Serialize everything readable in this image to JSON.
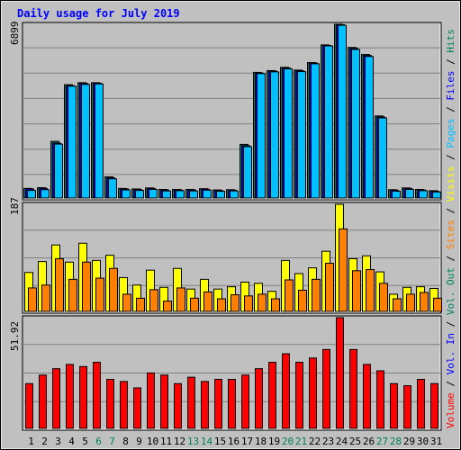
{
  "title": "Daily usage for July 2019",
  "right_legend": [
    {
      "text": "Hits",
      "color": "#00805c"
    },
    {
      "text": "Files",
      "color": "#0000ff"
    },
    {
      "text": "Pages",
      "color": "#00c0ff"
    },
    {
      "text": "Visits",
      "color": "#ffff00"
    },
    {
      "text": "Sites",
      "color": "#ff8000"
    },
    {
      "text": "Vol. Out",
      "color": "#00805c"
    },
    {
      "text": "Vol. In",
      "color": "#0000ff"
    },
    {
      "text": "Volume",
      "color": "#ff0000"
    }
  ],
  "chart_data": [
    {
      "type": "bar",
      "panel": "hits-files-pages",
      "ymax_label": "6899",
      "ylim": [
        0,
        6899
      ],
      "categories": [
        "1",
        "2",
        "3",
        "4",
        "5",
        "6",
        "7",
        "8",
        "9",
        "10",
        "11",
        "12",
        "13",
        "14",
        "15",
        "16",
        "17",
        "18",
        "19",
        "20",
        "21",
        "22",
        "23",
        "24",
        "25",
        "26",
        "27",
        "28",
        "29",
        "30",
        "31"
      ],
      "series": [
        {
          "name": "Hits",
          "color": "#00805c",
          "values": [
            380,
            410,
            2250,
            4500,
            4580,
            4580,
            840,
            380,
            360,
            400,
            340,
            340,
            340,
            370,
            320,
            330,
            2130,
            4990,
            5060,
            5190,
            5080,
            5380,
            6080,
            6899,
            5980,
            5700,
            3260,
            330,
            400,
            340,
            290
          ]
        },
        {
          "name": "Files",
          "color": "#0000ff",
          "values": [
            360,
            380,
            2180,
            4460,
            4550,
            4560,
            800,
            360,
            340,
            380,
            320,
            320,
            320,
            350,
            300,
            310,
            2080,
            4960,
            5040,
            5160,
            5050,
            5360,
            6060,
            6880,
            5940,
            5660,
            3220,
            310,
            380,
            320,
            270
          ]
        },
        {
          "name": "Pages",
          "color": "#00c0ff",
          "values": [
            300,
            330,
            2140,
            4440,
            4510,
            4530,
            760,
            320,
            300,
            340,
            280,
            290,
            280,
            310,
            270,
            280,
            2040,
            4940,
            5010,
            5130,
            5020,
            5330,
            6040,
            6860,
            5900,
            5620,
            3180,
            270,
            340,
            290,
            240
          ]
        }
      ]
    },
    {
      "type": "bar",
      "panel": "visits-sites",
      "ymax_label": "187",
      "ylim": [
        0,
        187
      ],
      "categories": [
        "1",
        "2",
        "3",
        "4",
        "5",
        "6",
        "7",
        "8",
        "9",
        "10",
        "11",
        "12",
        "13",
        "14",
        "15",
        "16",
        "17",
        "18",
        "19",
        "20",
        "21",
        "22",
        "23",
        "24",
        "25",
        "26",
        "27",
        "28",
        "29",
        "30",
        "31"
      ],
      "series": [
        {
          "name": "Visits",
          "color": "#ffff00",
          "values": [
            68,
            87,
            116,
            86,
            119,
            89,
            98,
            59,
            46,
            72,
            42,
            75,
            39,
            56,
            39,
            43,
            51,
            49,
            35,
            89,
            66,
            76,
            105,
            187,
            92,
            97,
            69,
            30,
            42,
            43,
            40
          ]
        },
        {
          "name": "Sites",
          "color": "#ff8000",
          "values": [
            41,
            46,
            92,
            56,
            86,
            58,
            75,
            30,
            23,
            38,
            18,
            41,
            23,
            34,
            22,
            29,
            27,
            30,
            22,
            55,
            37,
            56,
            84,
            144,
            71,
            73,
            49,
            22,
            30,
            33,
            23
          ]
        }
      ]
    },
    {
      "type": "bar",
      "panel": "volume",
      "ymax_label": "51.92",
      "ylim": [
        0,
        51.92
      ],
      "categories": [
        "1",
        "2",
        "3",
        "4",
        "5",
        "6",
        "7",
        "8",
        "9",
        "10",
        "11",
        "12",
        "13",
        "14",
        "15",
        "16",
        "17",
        "18",
        "19",
        "20",
        "21",
        "22",
        "23",
        "24",
        "25",
        "26",
        "27",
        "28",
        "29",
        "30",
        "31"
      ],
      "series": [
        {
          "name": "Volume",
          "color": "#ff0000",
          "values": [
            21,
            25,
            28,
            30,
            29,
            31,
            23,
            22,
            19,
            26,
            25,
            21,
            24,
            22,
            23,
            23,
            25,
            28,
            31,
            35,
            31,
            33,
            37,
            51.92,
            37,
            30,
            27,
            21,
            20,
            23,
            21
          ]
        }
      ]
    }
  ],
  "x_labels": [
    {
      "text": "1",
      "color": "#000000"
    },
    {
      "text": "2",
      "color": "#000000"
    },
    {
      "text": "3",
      "color": "#000000"
    },
    {
      "text": "4",
      "color": "#000000"
    },
    {
      "text": "5",
      "color": "#000000"
    },
    {
      "text": "6",
      "color": "#00805c"
    },
    {
      "text": "7",
      "color": "#00805c"
    },
    {
      "text": "8",
      "color": "#000000"
    },
    {
      "text": "9",
      "color": "#000000"
    },
    {
      "text": "10",
      "color": "#000000"
    },
    {
      "text": "11",
      "color": "#000000"
    },
    {
      "text": "12",
      "color": "#000000"
    },
    {
      "text": "13",
      "color": "#00805c"
    },
    {
      "text": "14",
      "color": "#00805c"
    },
    {
      "text": "15",
      "color": "#000000"
    },
    {
      "text": "16",
      "color": "#000000"
    },
    {
      "text": "17",
      "color": "#000000"
    },
    {
      "text": "18",
      "color": "#000000"
    },
    {
      "text": "19",
      "color": "#000000"
    },
    {
      "text": "20",
      "color": "#00805c"
    },
    {
      "text": "21",
      "color": "#00805c"
    },
    {
      "text": "22",
      "color": "#000000"
    },
    {
      "text": "23",
      "color": "#000000"
    },
    {
      "text": "24",
      "color": "#000000"
    },
    {
      "text": "25",
      "color": "#000000"
    },
    {
      "text": "26",
      "color": "#000000"
    },
    {
      "text": "27",
      "color": "#00805c"
    },
    {
      "text": "28",
      "color": "#00805c"
    },
    {
      "text": "29",
      "color": "#000000"
    },
    {
      "text": "30",
      "color": "#000000"
    },
    {
      "text": "31",
      "color": "#000000"
    }
  ],
  "colors": {
    "background": "#c0c0c0",
    "plot_background": "#c0c0c0",
    "title": "#0000ff",
    "axis_label": "#000000",
    "gridline": "#808080"
  }
}
